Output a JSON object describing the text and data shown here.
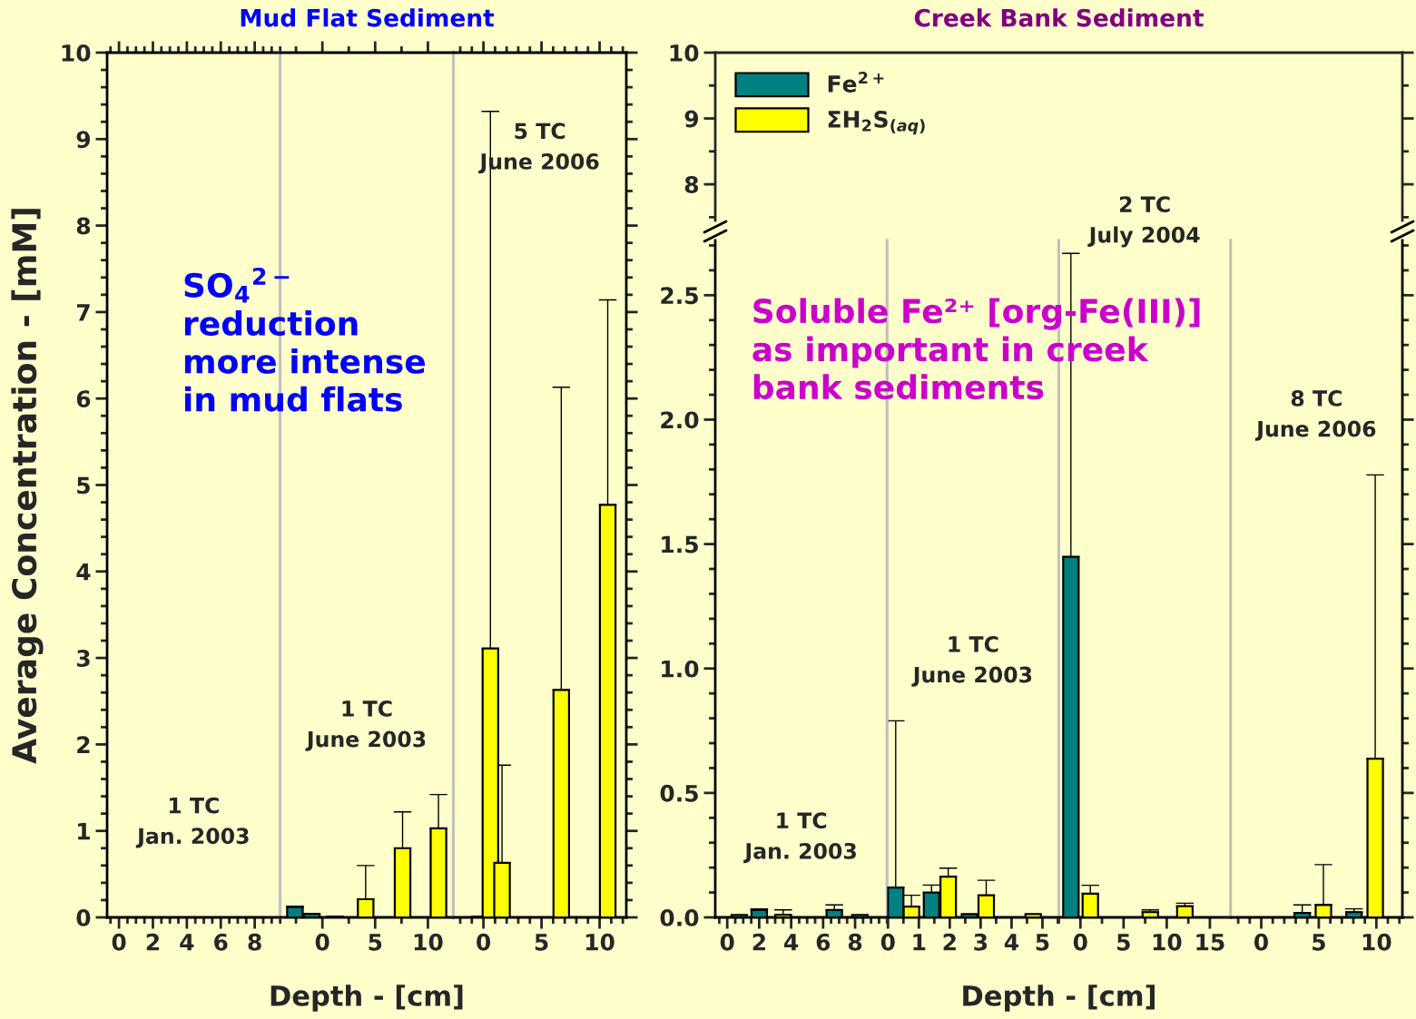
{
  "chart_data": [
    {
      "type": "bar",
      "title": "Mud Flat Sediment",
      "ylabel": "Average Concentration - [mM]",
      "xlim": [
        -0.7,
        9.5
      ],
      "xticks": [
        0,
        2,
        4,
        6,
        8
      ],
      "ylim": [
        0,
        10
      ],
      "yticks": [
        0,
        1,
        2,
        3,
        4,
        5,
        6,
        7,
        8,
        9,
        10
      ],
      "annotations": [
        "1 TC\nJan. 2003",
        "SO$_{4}$$^{2−}$\nreduction\nmore intense\nin mud flats"
      ]
    },
    {
      "type": "bar",
      "xlabel": "Depth - [cm]",
      "xlim": [
        -4.0,
        12.4
      ],
      "xticks": [
        0,
        5,
        10
      ],
      "ylim": [
        0,
        10
      ],
      "tick_labels": "x",
      "series": [
        {
          "color": "#008080",
          "x": [
            -2.6,
            -1.0
          ],
          "values": [
            0.12,
            0.04
          ],
          "errors": [
            [
              0.12,
              0.13
            ],
            null
          ]
        },
        {
          "color": "#ffff00",
          "x": [
            1.2,
            4.1,
            7.6,
            11.0
          ],
          "values": [
            0.01,
            0.21,
            0.8,
            1.03
          ],
          "errors": [
            null,
            [
              0.21,
              0.6
            ],
            [
              0.8,
              1.22
            ],
            [
              1.03,
              1.42
            ]
          ]
        }
      ],
      "annotations": [
        "1 TC\nJune 2003"
      ]
    },
    {
      "type": "bar",
      "xlim": [
        -2.6,
        12.3
      ],
      "xticks": [
        0,
        5,
        10
      ],
      "ylim": [
        0,
        10
      ],
      "yticks": [
        0,
        1,
        2,
        3,
        4,
        5,
        6,
        7,
        8,
        9,
        10
      ],
      "tick_labels": "x",
      "series": [
        {
          "color": "#008080",
          "x": [
            -0.3
          ],
          "values": [
            0.01
          ]
        },
        {
          "color": "#ffff00",
          "x": [
            0.6,
            1.6,
            6.7,
            10.7
          ],
          "values": [
            3.11,
            0.63,
            2.63,
            4.77
          ],
          "errors": [
            [
              3.11,
              9.32
            ],
            [
              0.63,
              1.76
            ],
            [
              2.63,
              6.13
            ],
            [
              4.77,
              7.14
            ]
          ]
        }
      ],
      "annotations": [
        "5 TC\nJune 2006"
      ]
    },
    {
      "type": "bar",
      "ylim": [
        7.45,
        10
      ],
      "yticks": [
        8,
        9,
        10
      ],
      "tick_labels": "y",
      "legend": "top left",
      "series": [
        {
          "name": "Fe$^{2+}$",
          "color": "#008080"
        },
        {
          "name": "ΣH$_{2}$S$_{(aq)}$",
          "color": "#ffff00"
        }
      ]
    },
    {
      "type": "bar",
      "xlim": [
        -0.75,
        10.0
      ],
      "xticks": [
        0,
        2,
        4,
        6,
        8
      ],
      "ylim": [
        0,
        2.72
      ],
      "yticks": [
        {
          "value": 0,
          "label": "0.0"
        },
        0.5,
        {
          "value": 1,
          "label": "1.0"
        },
        1.5,
        {
          "value": 2,
          "label": "2.0"
        },
        2.5
      ],
      "series": [
        {
          "color": "#008080",
          "x": [
            0.75,
            2.0,
            6.7,
            8.3
          ],
          "values": [
            0.01,
            0.03,
            0.03,
            0.01
          ],
          "errors": [
            null,
            [
              0.03,
              0.034
            ],
            [
              0.03,
              0.05
            ],
            null
          ]
        },
        {
          "color": "#ffff00",
          "x": [
            3.5
          ],
          "values": [
            0.01
          ],
          "errors": [
            [
              0.01,
              0.03
            ]
          ]
        }
      ],
      "annotations": [
        "1 TC\nJan. 2003",
        "Soluble Fe²⁺ [org-Fe(III)]\nas important in creek\nbank sediments"
      ]
    },
    {
      "type": "bar",
      "title": "Creek Bank Sediment",
      "xlabel": "Depth - [cm]",
      "xlim": [
        -0.03,
        5.53
      ],
      "xticks": [
        0,
        1,
        2,
        3,
        4,
        5
      ],
      "ylim": [
        0,
        2.72
      ],
      "tick_labels": "x",
      "series": [
        {
          "color": "#008080",
          "x": [
            0.25,
            1.41,
            2.64
          ],
          "values": [
            0.12,
            0.1,
            0.013
          ],
          "errors": [
            [
              0.12,
              0.79
            ],
            [
              0.1,
              0.13
            ],
            null
          ]
        },
        {
          "color": "#ffff00",
          "x": [
            0.76,
            1.95,
            3.18,
            4.7
          ],
          "values": [
            0.043,
            0.164,
            0.089,
            0.013
          ],
          "errors": [
            [
              0.043,
              0.089
            ],
            [
              0.164,
              0.198
            ],
            [
              0.089,
              0.149
            ],
            null
          ]
        }
      ],
      "annotations": [
        "1 TC\nJune 2003"
      ]
    },
    {
      "type": "bar",
      "xlim": [
        -2.5,
        17.4
      ],
      "xticks": [
        0,
        5,
        10,
        15
      ],
      "ylim": [
        0,
        2.72
      ],
      "tick_labels": "x",
      "series": [
        {
          "color": "#008080",
          "x": [
            -1.1
          ],
          "values": [
            1.449
          ],
          "errors": [
            [
              1.449,
              2.668
            ]
          ]
        },
        {
          "color": "#ffff00",
          "x": [
            1.15,
            8.1,
            12.1
          ],
          "values": [
            0.095,
            0.021,
            0.045
          ],
          "errors": [
            [
              0.095,
              0.129
            ],
            [
              0.021,
              0.03
            ],
            [
              0.045,
              0.057
            ]
          ]
        }
      ],
      "annotations": [
        "2 TC\nJuly 2004"
      ]
    },
    {
      "type": "bar",
      "xlim": [
        -2.66,
        12.26
      ],
      "xticks": [
        0,
        5,
        10
      ],
      "ylim": [
        0,
        2.72
      ],
      "yticks": [
        0,
        0.5,
        1,
        1.5,
        2,
        2.5
      ],
      "tick_labels": "x",
      "series": [
        {
          "color": "#008080",
          "x": [
            3.56,
            8.06
          ],
          "values": [
            0.018,
            0.021
          ],
          "errors": [
            [
              0.018,
              0.05
            ],
            [
              0.021,
              0.034
            ]
          ]
        },
        {
          "color": "#ffff00",
          "x": [
            5.4,
            9.9
          ],
          "values": [
            0.05,
            0.638
          ],
          "errors": [
            [
              0.05,
              0.212
            ],
            [
              0.638,
              1.778
            ]
          ]
        }
      ],
      "annotations": [
        "8 TC\nJune 2006"
      ]
    }
  ]
}
